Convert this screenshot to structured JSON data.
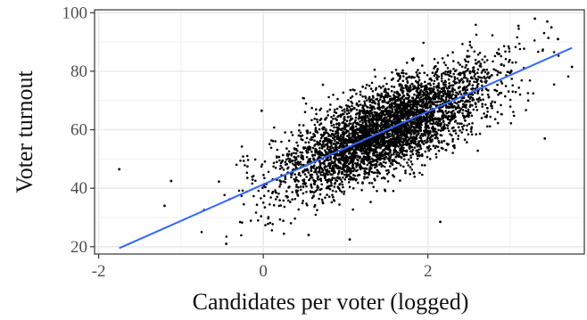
{
  "chart_data": {
    "type": "scatter",
    "title": "",
    "xlabel": "Candidates per voter (logged)",
    "ylabel": "Voter turnout",
    "xlim": [
      -2.05,
      3.9
    ],
    "ylim": [
      17.5,
      101
    ],
    "x_ticks": [
      -2,
      0,
      2
    ],
    "y_ticks": [
      20,
      40,
      60,
      80,
      100
    ],
    "x_tick_labels": [
      "-2",
      "0",
      "2"
    ],
    "y_tick_labels": [
      "20",
      "40",
      "60",
      "80",
      "100"
    ],
    "grid": true,
    "panel_background": "#ffffff",
    "grid_color": "#ebebeb",
    "point_color": "#000000",
    "fit_line": {
      "type": "linear",
      "color": "#3366ff",
      "x": [
        -1.75,
        3.75
      ],
      "y": [
        19.5,
        88.0
      ]
    },
    "cluster": {
      "n_points": 4200,
      "x_mean": 1.5,
      "x_sd": 0.65,
      "slope": 12.45,
      "intercept": 41.3,
      "residual_sd": 7.2
    },
    "outliers": [
      {
        "x": -1.75,
        "y": 46.5
      },
      {
        "x": -1.12,
        "y": 42.5
      },
      {
        "x": -1.2,
        "y": 34.0
      },
      {
        "x": -0.45,
        "y": 21.0
      },
      {
        "x": -0.02,
        "y": 66.5
      },
      {
        "x": 3.45,
        "y": 97.0
      },
      {
        "x": 3.3,
        "y": 98.0
      },
      {
        "x": 3.5,
        "y": 95.0
      },
      {
        "x": 3.58,
        "y": 91.0
      },
      {
        "x": 3.75,
        "y": 81.5
      },
      {
        "x": 3.42,
        "y": 57.0
      },
      {
        "x": 3.1,
        "y": 95.5
      },
      {
        "x": 1.05,
        "y": 22.5
      },
      {
        "x": 2.15,
        "y": 28.5
      },
      {
        "x": 0.55,
        "y": 24.0
      }
    ]
  }
}
